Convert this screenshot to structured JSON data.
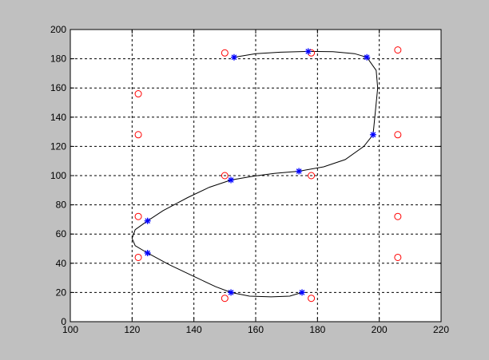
{
  "chart_data": {
    "type": "scatter",
    "xlim": [
      100,
      220
    ],
    "ylim": [
      0,
      200
    ],
    "xticks": [
      100,
      120,
      140,
      160,
      180,
      200,
      220
    ],
    "yticks": [
      0,
      20,
      40,
      60,
      80,
      100,
      120,
      140,
      160,
      180,
      200
    ],
    "x_tick_labels": [
      "100",
      "120",
      "140",
      "160",
      "180",
      "200",
      "220"
    ],
    "y_tick_labels": [
      "0",
      "20",
      "40",
      "60",
      "80",
      "100",
      "120",
      "140",
      "160",
      "180",
      "200"
    ],
    "grid": true,
    "grid_style": "dashed",
    "series": [
      {
        "marker": "circle",
        "color": "#ff0000",
        "x": [
          150,
          178,
          206,
          122,
          122,
          206,
          150,
          178,
          122,
          206,
          122,
          206,
          150,
          178
        ],
        "y": [
          184,
          184,
          186,
          156,
          128,
          128,
          100,
          100,
          72,
          72,
          44,
          44,
          16,
          16
        ]
      },
      {
        "marker": "asterisk",
        "color": "#0000ff",
        "x": [
          153,
          177,
          196,
          198,
          174,
          152,
          125,
          125,
          152,
          175
        ],
        "y": [
          181,
          185,
          181,
          128,
          103,
          97,
          69,
          47,
          20,
          20
        ]
      },
      {
        "marker": "line",
        "color": "#000000",
        "x": [
          153,
          160,
          168,
          177,
          185,
          192,
          196,
          199,
          199.5,
          198,
          195,
          189,
          182,
          174,
          166,
          159,
          152,
          145,
          138,
          130,
          125,
          121,
          120,
          121,
          125,
          132,
          140,
          147,
          152,
          158,
          165,
          171,
          175
        ],
        "y": [
          181,
          183.5,
          184.5,
          185,
          184.8,
          183.5,
          181,
          172,
          160,
          128,
          120,
          111,
          106,
          103,
          101.5,
          99.5,
          97,
          92,
          85,
          76,
          69,
          63,
          57,
          52,
          47,
          39,
          31,
          24,
          20,
          17.5,
          17,
          17.5,
          20
        ]
      }
    ]
  }
}
